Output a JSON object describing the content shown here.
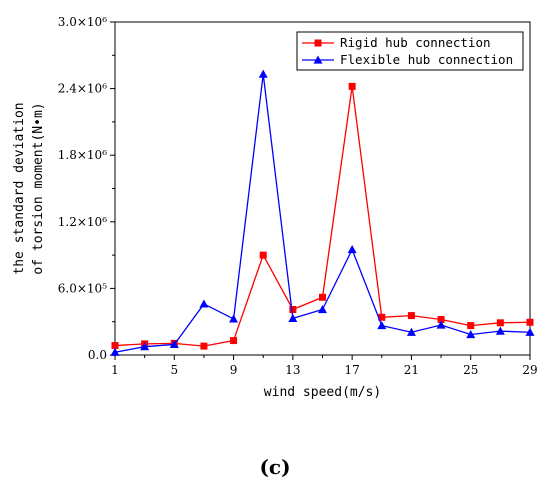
{
  "chart_data": {
    "type": "line",
    "caption": "(c)",
    "xlabel": "wind speed(m/s)",
    "ylabel_lines": [
      "the standard deviation",
      "of torsion moment(N•m)"
    ],
    "x_ticks": [
      1,
      5,
      9,
      13,
      17,
      21,
      25,
      29
    ],
    "y_ticks": [
      0,
      600000,
      1200000,
      1800000,
      2400000,
      3000000
    ],
    "y_tick_labels": [
      "0.0",
      "6.0×10⁵",
      "1.2×10⁶",
      "1.8×10⁶",
      "2.4×10⁶",
      "3.0×10⁶"
    ],
    "xlim": [
      1,
      29
    ],
    "ylim": [
      0,
      3000000
    ],
    "legend_position": "top-right",
    "x": [
      1,
      3,
      5,
      7,
      9,
      11,
      13,
      15,
      17,
      19,
      21,
      23,
      25,
      27,
      29
    ],
    "series": [
      {
        "name": "Rigid hub connection",
        "color": "#ff0000",
        "marker": "square",
        "values": [
          85000,
          100000,
          105000,
          80000,
          130000,
          900000,
          410000,
          520000,
          2420000,
          340000,
          355000,
          320000,
          265000,
          290000,
          295000
        ]
      },
      {
        "name": "Flexible hub connection",
        "color": "#0000ff",
        "marker": "triangle",
        "values": [
          25000,
          75000,
          95000,
          460000,
          325000,
          2530000,
          330000,
          410000,
          950000,
          265000,
          205000,
          270000,
          185000,
          215000,
          205000
        ]
      }
    ]
  }
}
